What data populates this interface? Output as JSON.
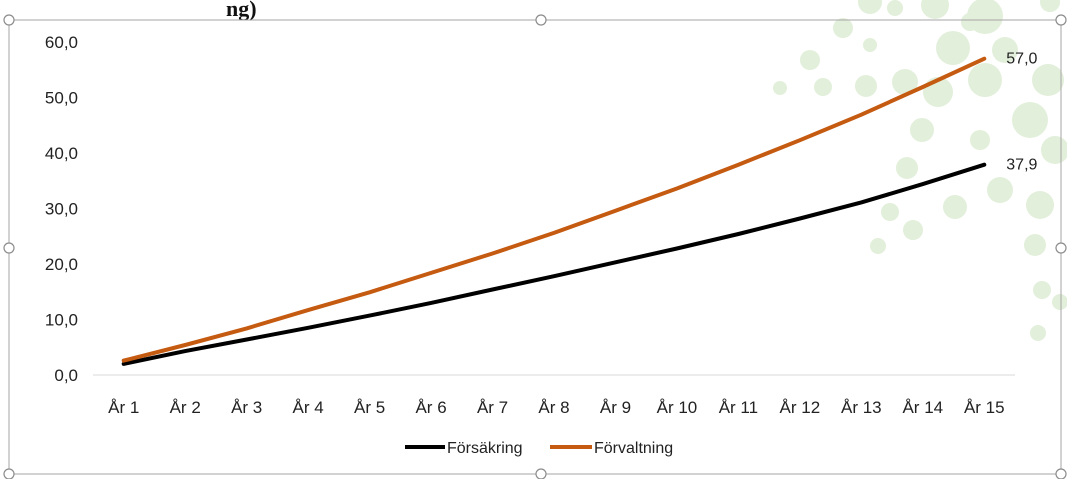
{
  "partial_title": "ng)",
  "colors": {
    "series_1": "#000000",
    "series_2": "#C55A11",
    "decor_dots": "#E2EFDA",
    "axis": "#D9D9D9",
    "frame": "#A6A6A6"
  },
  "chart_data": {
    "type": "line",
    "title": "",
    "xlabel": "",
    "ylabel": "",
    "ylim": [
      0,
      60
    ],
    "y_ticks": [
      "0,0",
      "10,0",
      "20,0",
      "30,0",
      "40,0",
      "50,0",
      "60,0"
    ],
    "categories": [
      "År 1",
      "År 2",
      "År 3",
      "År 4",
      "År 5",
      "År 6",
      "År 7",
      "År 8",
      "År 9",
      "År 10",
      "År 11",
      "År 12",
      "År 13",
      "År 14",
      "År 15"
    ],
    "series": [
      {
        "name": "Försäkring",
        "values": [
          2.0,
          4.3,
          6.4,
          8.5,
          10.7,
          13.0,
          15.4,
          17.8,
          20.3,
          22.8,
          25.4,
          28.2,
          31.1,
          34.4,
          37.9
        ],
        "end_label": "37,9"
      },
      {
        "name": "Förvaltning",
        "values": [
          2.6,
          5.4,
          8.4,
          11.7,
          14.9,
          18.4,
          21.9,
          25.6,
          29.6,
          33.6,
          37.9,
          42.3,
          46.9,
          51.9,
          57.0
        ],
        "end_label": "57,0"
      }
    ],
    "legend_position": "bottom",
    "grid": false
  }
}
